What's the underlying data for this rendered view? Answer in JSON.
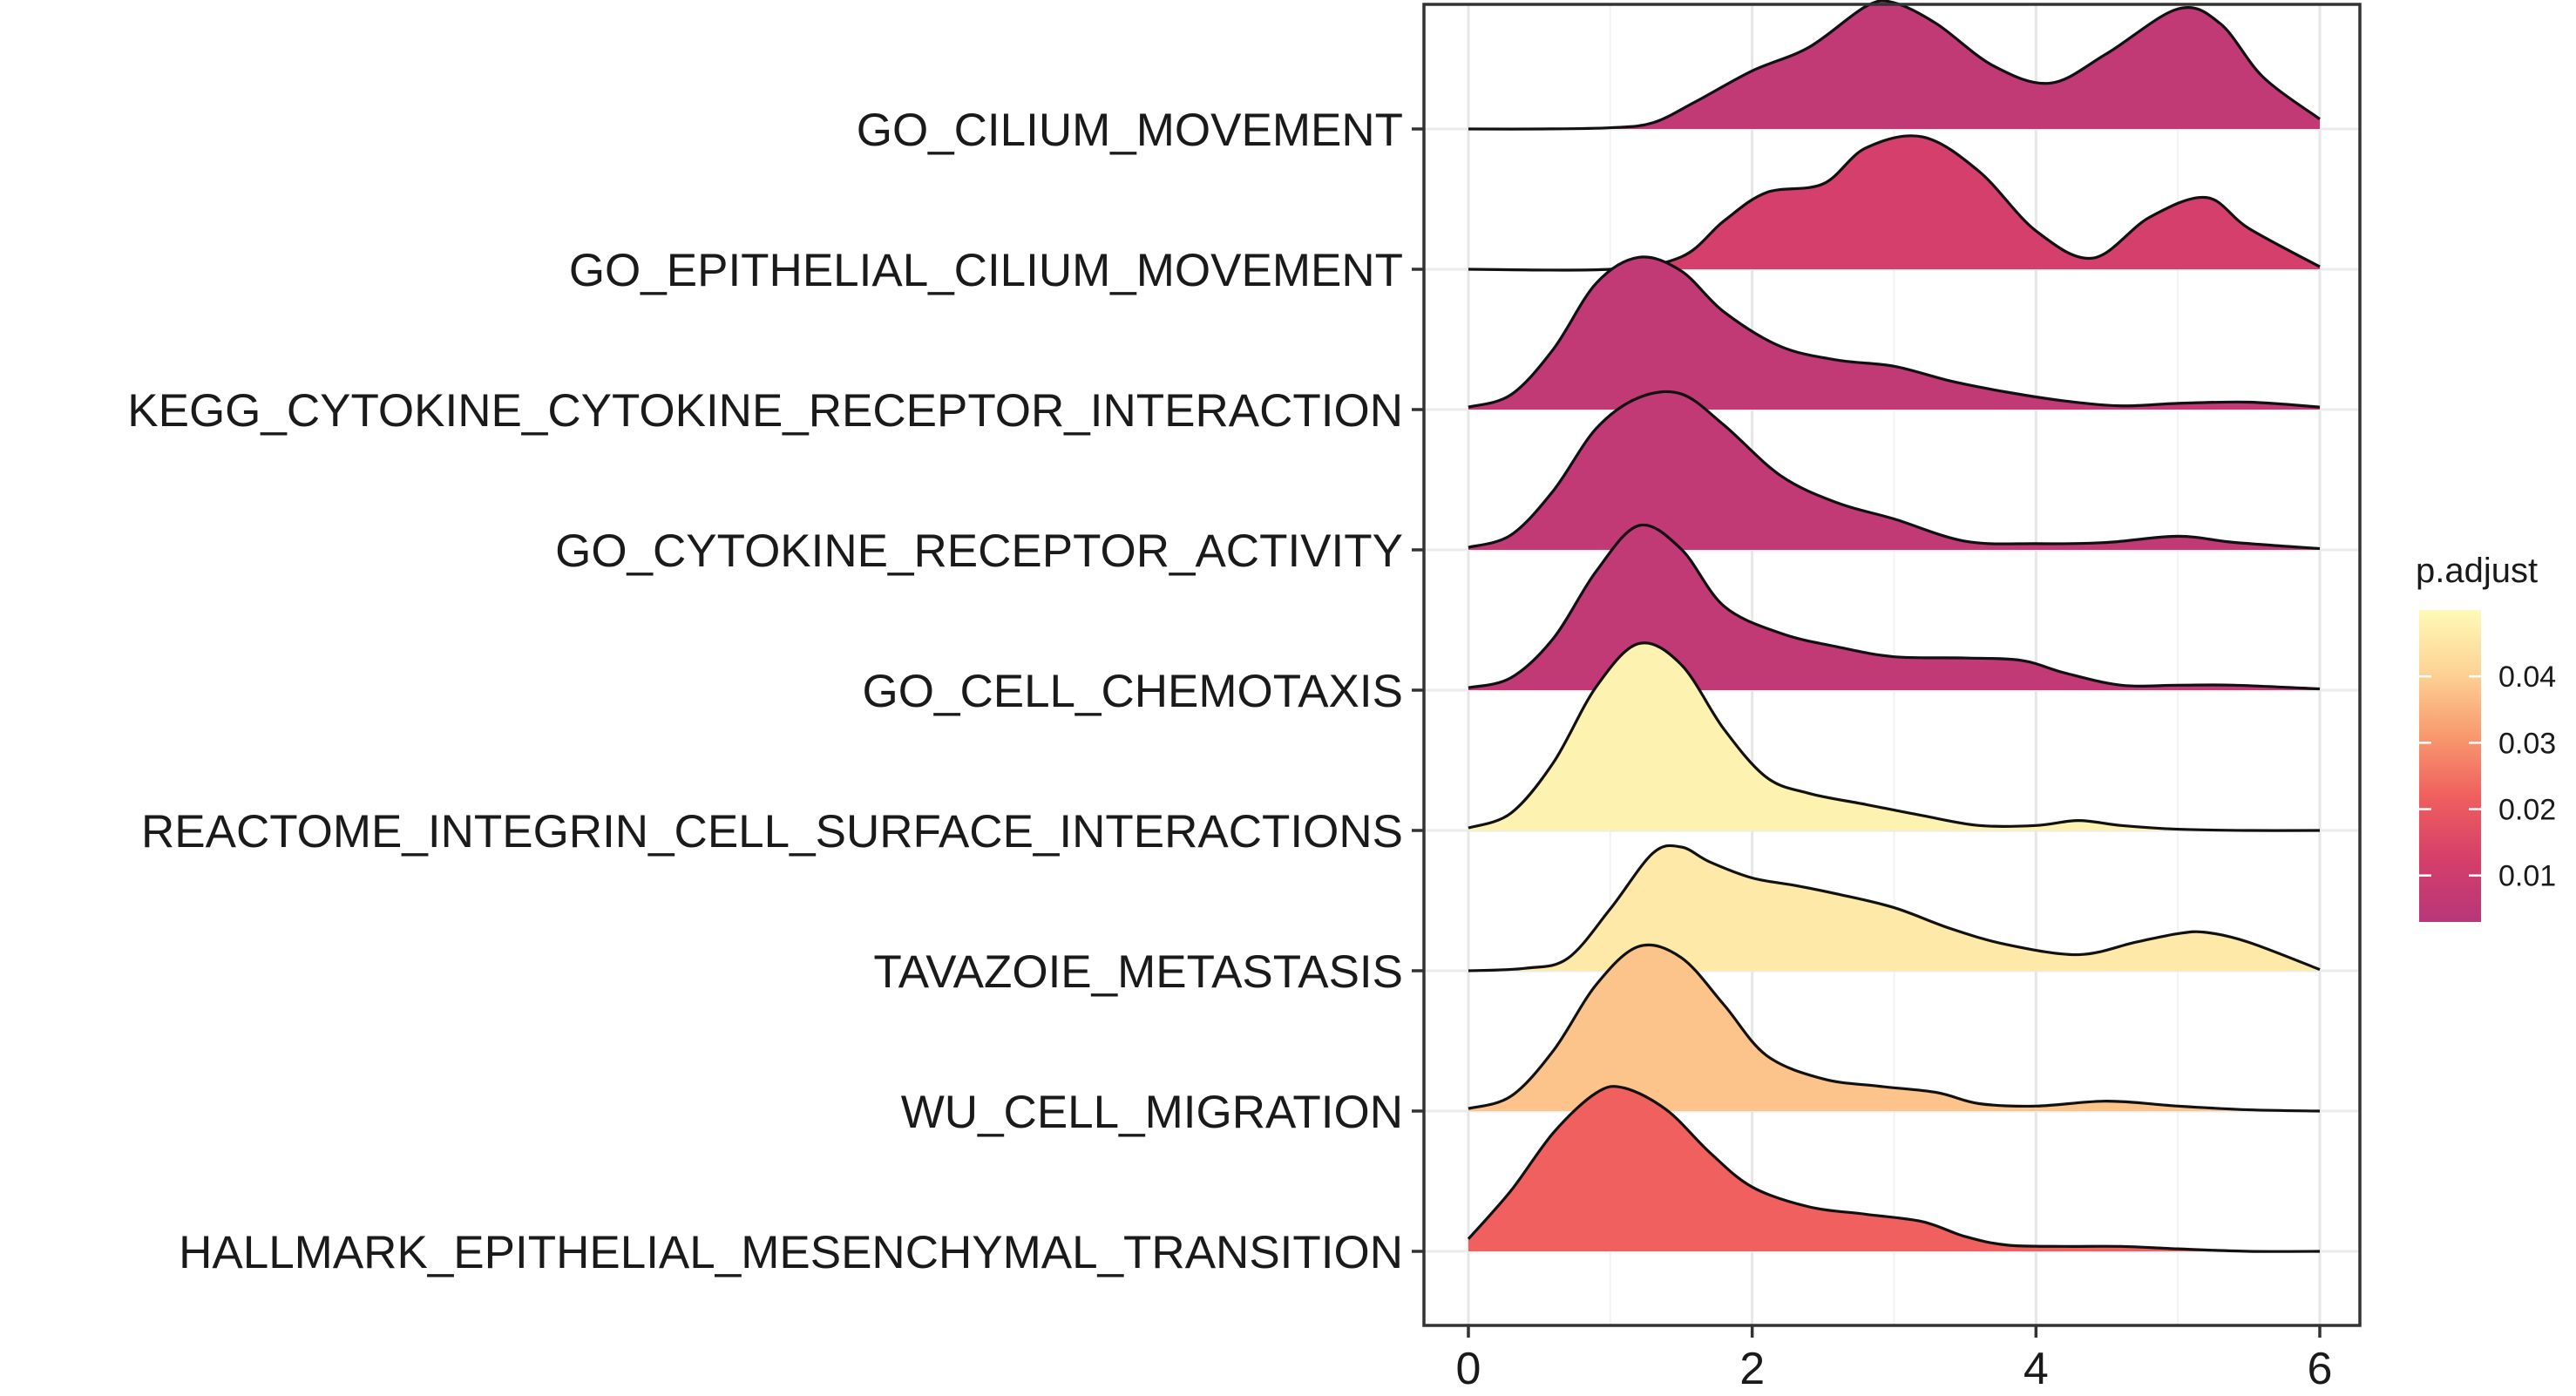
{
  "chart_data": {
    "type": "ridgeline",
    "categories": [
      "GO_CILIUM_MOVEMENT",
      "GO_EPITHELIAL_CILIUM_MOVEMENT",
      "KEGG_CYTOKINE_CYTOKINE_RECEPTOR_INTERACTION",
      "GO_CYTOKINE_RECEPTOR_ACTIVITY",
      "GO_CELL_CHEMOTAXIS",
      "REACTOME_INTEGRIN_CELL_SURFACE_INTERACTIONS",
      "TAVAZOIE_METASTASIS",
      "WU_CELL_MIGRATION",
      "HALLMARK_EPITHELIAL_MESENCHYMAL_TRANSITION"
    ],
    "xlim": [
      0,
      6
    ],
    "x_ticks": [
      0,
      2,
      4,
      6
    ],
    "grid": true,
    "legend": {
      "title": "p.adjust",
      "position": "right",
      "range": [
        0.003,
        0.05
      ],
      "ticks": [
        "0.01",
        "0.02",
        "0.03",
        "0.04"
      ],
      "tick_values": [
        0.01,
        0.02,
        0.03,
        0.04
      ],
      "colors": [
        "#b7367a",
        "#d53f6a",
        "#ef5f5e",
        "#f89a6e",
        "#fdd395",
        "#fefab7"
      ]
    },
    "series": [
      {
        "name": "GO_CILIUM_MOVEMENT",
        "p_adjust": 0.006,
        "x": [
          0,
          0.5,
          1.0,
          1.3,
          1.6,
          2.0,
          2.4,
          2.8,
          3.0,
          3.3,
          3.7,
          4.1,
          4.5,
          5.0,
          5.3,
          5.6,
          6.0
        ],
        "y": [
          0,
          0,
          0.01,
          0.05,
          0.22,
          0.47,
          0.66,
          0.99,
          1.02,
          0.85,
          0.51,
          0.37,
          0.61,
          0.97,
          0.85,
          0.42,
          0.08
        ]
      },
      {
        "name": "GO_EPITHELIAL_CILIUM_MOVEMENT",
        "p_adjust": 0.012,
        "x": [
          0,
          1.0,
          1.5,
          1.8,
          2.1,
          2.5,
          2.8,
          3.2,
          3.6,
          4.0,
          4.4,
          4.8,
          5.2,
          5.5,
          6.0
        ],
        "y": [
          0,
          0,
          0.1,
          0.39,
          0.62,
          0.69,
          0.98,
          1.07,
          0.79,
          0.31,
          0.09,
          0.42,
          0.58,
          0.33,
          0.02
        ]
      },
      {
        "name": "KEGG_CYTOKINE_CYTOKINE_RECEPTOR_INTERACTION",
        "p_adjust": 0.006,
        "x": [
          0,
          0.3,
          0.6,
          0.9,
          1.2,
          1.5,
          1.8,
          2.2,
          2.6,
          3.0,
          3.4,
          3.8,
          4.2,
          4.6,
          5.0,
          5.5,
          6.0
        ],
        "y": [
          0.02,
          0.12,
          0.49,
          1.02,
          1.23,
          1.12,
          0.79,
          0.51,
          0.4,
          0.35,
          0.23,
          0.14,
          0.07,
          0.03,
          0.05,
          0.06,
          0.02
        ]
      },
      {
        "name": "GO_CYTOKINE_RECEPTOR_ACTIVITY",
        "p_adjust": 0.006,
        "x": [
          0,
          0.3,
          0.6,
          0.9,
          1.2,
          1.5,
          1.8,
          2.2,
          2.6,
          3.0,
          3.5,
          4.0,
          4.5,
          5.0,
          5.4,
          6.0
        ],
        "y": [
          0.02,
          0.12,
          0.48,
          0.98,
          1.23,
          1.26,
          1.01,
          0.6,
          0.38,
          0.25,
          0.07,
          0.05,
          0.06,
          0.11,
          0.06,
          0.01
        ]
      },
      {
        "name": "GO_CELL_CHEMOTAXIS",
        "p_adjust": 0.006,
        "x": [
          0,
          0.3,
          0.6,
          0.9,
          1.2,
          1.5,
          1.8,
          2.2,
          2.6,
          3.0,
          3.5,
          3.9,
          4.2,
          4.6,
          5.0,
          5.4,
          6.0
        ],
        "y": [
          0.02,
          0.1,
          0.42,
          0.96,
          1.33,
          1.14,
          0.68,
          0.46,
          0.35,
          0.27,
          0.26,
          0.24,
          0.14,
          0.04,
          0.04,
          0.04,
          0.01
        ]
      },
      {
        "name": "REACTOME_INTEGRIN_CELL_SURFACE_INTERACTIONS",
        "p_adjust": 0.048,
        "x": [
          0,
          0.3,
          0.6,
          0.9,
          1.2,
          1.5,
          1.8,
          2.1,
          2.4,
          2.8,
          3.2,
          3.6,
          4.0,
          4.3,
          4.6,
          5.0,
          5.5,
          6.0
        ],
        "y": [
          0.02,
          0.14,
          0.55,
          1.16,
          1.51,
          1.34,
          0.82,
          0.43,
          0.3,
          0.21,
          0.12,
          0.04,
          0.04,
          0.08,
          0.04,
          0.01,
          0,
          0
        ]
      },
      {
        "name": "TAVAZOIE_METASTASIS",
        "p_adjust": 0.046,
        "x": [
          0,
          0.4,
          0.7,
          1.0,
          1.3,
          1.5,
          1.7,
          2.0,
          2.3,
          2.6,
          3.0,
          3.4,
          3.8,
          4.3,
          4.7,
          5.0,
          5.2,
          5.5,
          6.0
        ],
        "y": [
          0,
          0.02,
          0.1,
          0.5,
          0.95,
          1.0,
          0.88,
          0.75,
          0.69,
          0.62,
          0.51,
          0.34,
          0.21,
          0.13,
          0.23,
          0.3,
          0.31,
          0.23,
          0.01
        ]
      },
      {
        "name": "WU_CELL_MIGRATION",
        "p_adjust": 0.038,
        "x": [
          0,
          0.3,
          0.6,
          0.9,
          1.2,
          1.5,
          1.8,
          2.1,
          2.5,
          2.9,
          3.3,
          3.6,
          4.0,
          4.5,
          5.0,
          5.5,
          6.0
        ],
        "y": [
          0.02,
          0.12,
          0.49,
          1.02,
          1.33,
          1.24,
          0.86,
          0.45,
          0.26,
          0.2,
          0.15,
          0.06,
          0.04,
          0.08,
          0.04,
          0.01,
          0
        ]
      },
      {
        "name": "HALLMARK_EPITHELIAL_MESENCHYMAL_TRANSITION",
        "p_adjust": 0.022,
        "x": [
          0,
          0.3,
          0.6,
          0.9,
          1.1,
          1.4,
          1.7,
          2.0,
          2.4,
          2.8,
          3.2,
          3.5,
          3.8,
          4.2,
          4.6,
          5.0,
          5.5,
          6.0
        ],
        "y": [
          0.1,
          0.49,
          0.96,
          1.28,
          1.32,
          1.14,
          0.8,
          0.52,
          0.36,
          0.3,
          0.24,
          0.12,
          0.05,
          0.04,
          0.04,
          0.02,
          0,
          0
        ]
      }
    ]
  }
}
